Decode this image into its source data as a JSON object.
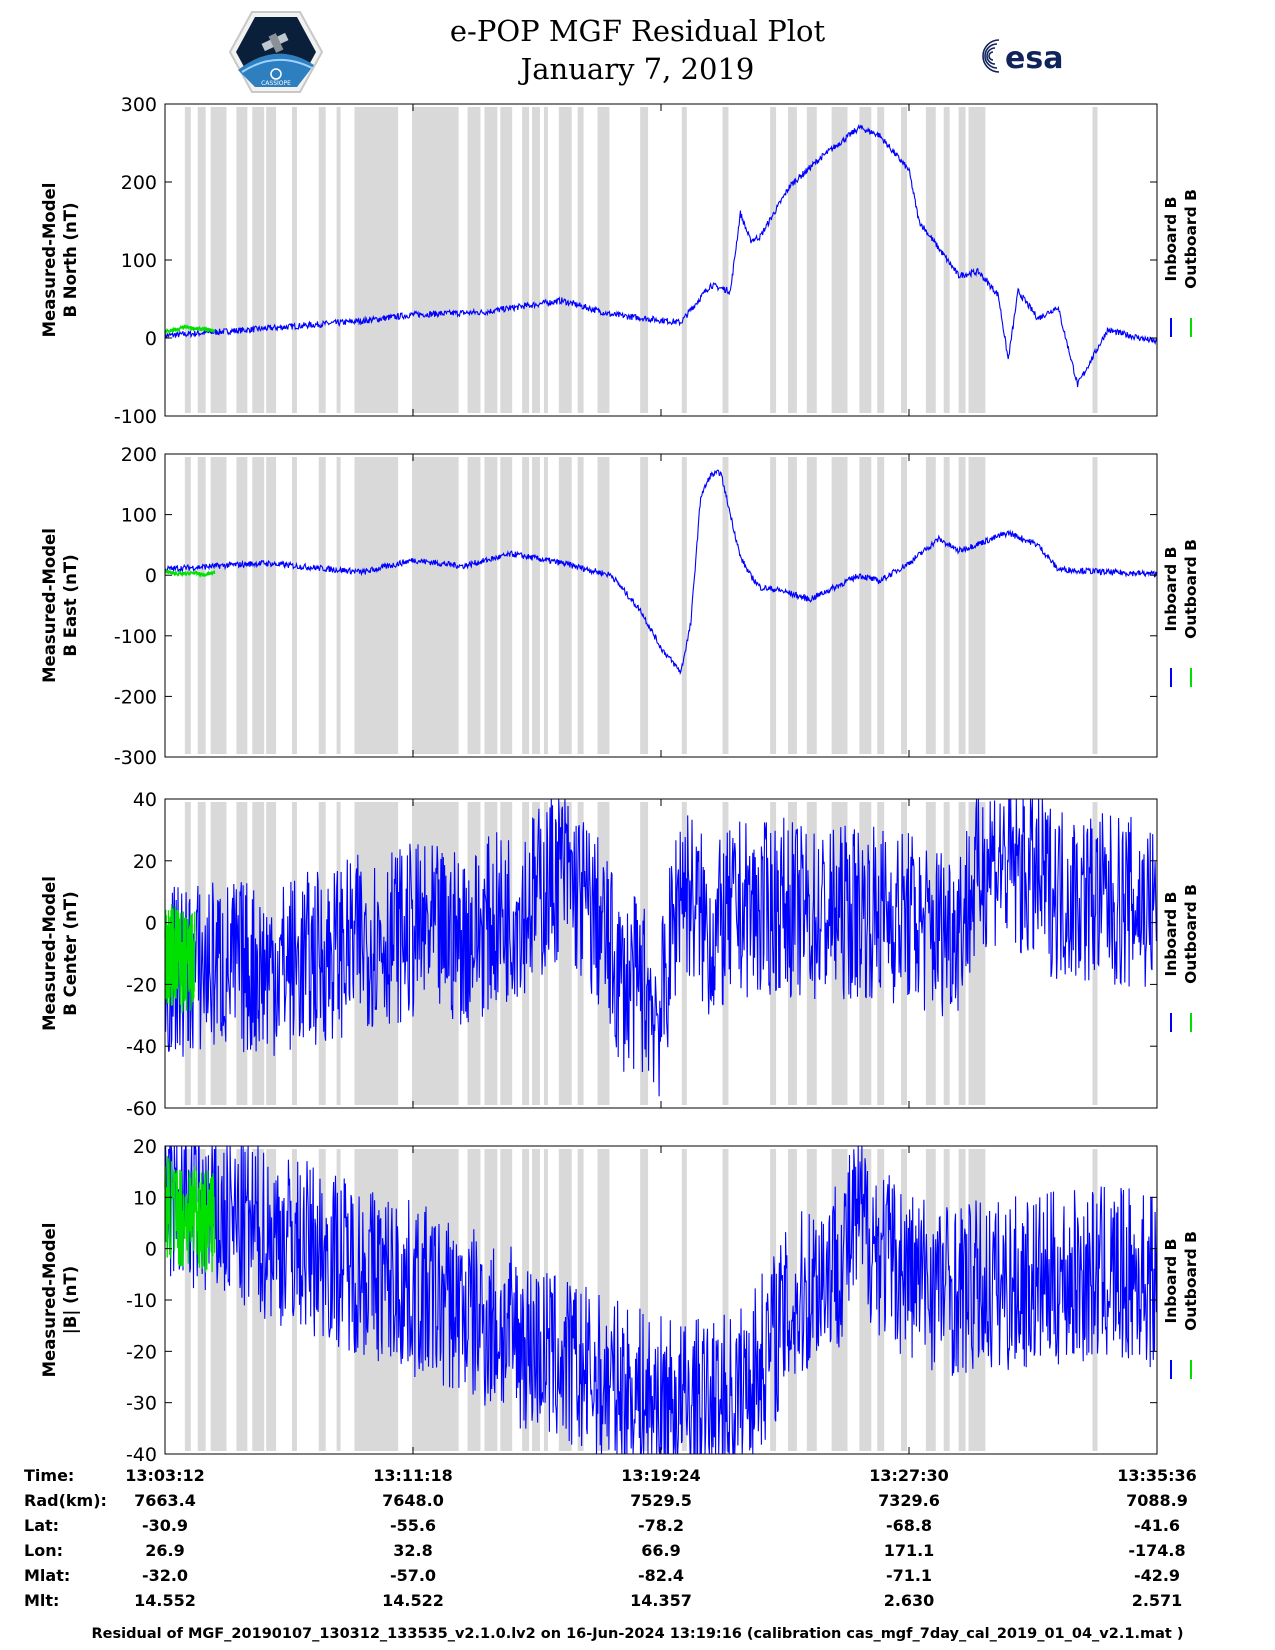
{
  "header": {
    "title_line1": "e-POP MGF Residual Plot",
    "title_line2": "January 7, 2019",
    "logo_left_text": "CASSIOPE",
    "logo_right_text": "esa"
  },
  "colors": {
    "inboard": "#0000ff",
    "outboard": "#00e000",
    "gap_shading": "#d9d9d9"
  },
  "chart_data": [
    {
      "type": "line",
      "ylabel": [
        "Measured-Model",
        "B North (nT)"
      ],
      "ylim": [
        -100,
        300
      ],
      "yticks": [
        300,
        200,
        100,
        0,
        -100
      ],
      "legend": [
        "Inboard B",
        "Outboard B"
      ],
      "series": [
        {
          "name": "Inboard B",
          "x_min": [
            0,
            10,
            20,
            25,
            32,
            40,
            45,
            52,
            55,
            57,
            58,
            59,
            60,
            63,
            66,
            70,
            72,
            75,
            76,
            78,
            80,
            82,
            84,
            85,
            86,
            88,
            90,
            92,
            95,
            100
          ],
          "y": [
            3,
            12,
            22,
            30,
            33,
            48,
            30,
            20,
            68,
            60,
            160,
            125,
            130,
            195,
            230,
            270,
            260,
            215,
            150,
            115,
            80,
            85,
            55,
            -28,
            60,
            25,
            40,
            -60,
            10,
            -5
          ]
        },
        {
          "name": "Outboard B",
          "x_min": [
            0,
            1,
            2,
            3,
            4,
            5
          ],
          "y": [
            8,
            10,
            14,
            12,
            11,
            9
          ]
        }
      ]
    },
    {
      "type": "line",
      "ylabel": [
        "Measured-Model",
        "B East (nT)"
      ],
      "ylim": [
        -300,
        200
      ],
      "yticks": [
        200,
        100,
        0,
        -100,
        -200,
        -300
      ],
      "legend": [
        "Inboard B",
        "Outboard B"
      ],
      "series": [
        {
          "name": "Inboard B",
          "x_min": [
            0,
            10,
            20,
            25,
            30,
            35,
            40,
            45,
            48,
            50,
            52,
            53,
            54,
            55,
            56,
            58,
            59,
            60,
            62,
            65,
            70,
            72,
            75,
            78,
            80,
            85,
            88,
            90,
            95,
            100
          ],
          "y": [
            10,
            20,
            5,
            25,
            15,
            35,
            20,
            0,
            -60,
            -120,
            -160,
            -80,
            130,
            165,
            170,
            30,
            0,
            -20,
            -25,
            -40,
            0,
            -10,
            20,
            60,
            40,
            70,
            50,
            10,
            5,
            2
          ]
        },
        {
          "name": "Outboard B",
          "x_min": [
            0,
            1,
            2,
            3,
            4,
            5
          ],
          "y": [
            6,
            3,
            2,
            4,
            0,
            5
          ]
        }
      ]
    },
    {
      "type": "line",
      "ylabel": [
        "Measured-Model",
        "B Center (nT)"
      ],
      "ylim": [
        -60,
        40
      ],
      "yticks": [
        40,
        20,
        0,
        -20,
        -40,
        -60
      ],
      "legend": [
        "Inboard B",
        "Outboard B"
      ],
      "series": [
        {
          "name": "Inboard B",
          "x_min": [
            0,
            5,
            10,
            15,
            20,
            25,
            30,
            35,
            38,
            40,
            44,
            46,
            48,
            50,
            52,
            55,
            58,
            60,
            62,
            65,
            70,
            75,
            77,
            80,
            83,
            87,
            90,
            95,
            100
          ],
          "y": [
            -17,
            -14,
            -15,
            -12,
            -6,
            -3,
            -5,
            3,
            10,
            18,
            -2,
            -20,
            -20,
            -30,
            15,
            -5,
            5,
            3,
            6,
            2,
            4,
            2,
            -3,
            0,
            22,
            15,
            10,
            7,
            5
          ]
        },
        {
          "name": "Outboard B",
          "x_min": [
            0,
            1,
            2,
            3
          ],
          "y": [
            -12,
            -10,
            -14,
            -13
          ]
        }
      ]
    },
    {
      "type": "line",
      "ylabel": [
        "Measured-Model",
        "|B| (nT)"
      ],
      "ylim": [
        -40,
        20
      ],
      "yticks": [
        20,
        10,
        0,
        -10,
        -20,
        -30,
        -40
      ],
      "legend": [
        "Inboard B",
        "Outboard B"
      ],
      "series": [
        {
          "name": "Inboard B",
          "x_min": [
            0,
            5,
            10,
            15,
            20,
            25,
            30,
            35,
            40,
            45,
            50,
            55,
            58,
            60,
            62,
            64,
            66,
            68,
            70,
            72,
            75,
            80,
            85,
            90,
            95,
            100
          ],
          "y": [
            10,
            6,
            3,
            0,
            -4,
            -8,
            -12,
            -17,
            -22,
            -27,
            -30,
            -31,
            -28,
            -22,
            -15,
            -10,
            -5,
            -2,
            6,
            0,
            -5,
            -8,
            -7,
            -6,
            -5,
            -6
          ]
        },
        {
          "name": "Outboard B",
          "x_min": [
            0,
            1,
            2,
            3,
            4,
            5
          ],
          "y": [
            9,
            7,
            6,
            8,
            5,
            6
          ]
        }
      ]
    }
  ],
  "time_axis": {
    "row_labels": [
      "Time:",
      "Rad(km):",
      "Lat:",
      "Lon:",
      "Mlat:",
      "Mlt:"
    ],
    "ticks": [
      {
        "values": [
          "13:03:12",
          "7663.4",
          "-30.9",
          "26.9",
          "-32.0",
          "14.552"
        ]
      },
      {
        "values": [
          "13:11:18",
          "7648.0",
          "-55.6",
          "32.8",
          "-57.0",
          "14.522"
        ]
      },
      {
        "values": [
          "13:19:24",
          "7529.5",
          "-78.2",
          "66.9",
          "-82.4",
          "14.357"
        ]
      },
      {
        "values": [
          "13:27:30",
          "7329.6",
          "-68.8",
          "171.1",
          "-71.1",
          "2.630"
        ]
      },
      {
        "values": [
          "13:35:36",
          "7088.9",
          "-41.6",
          "-174.8",
          "-42.9",
          "2.571"
        ]
      }
    ]
  },
  "footer": "Residual of MGF_20190107_130312_133535_v2.1.0.lv2 on 16-Jun-2024 13:19:16 (calibration cas_mgf_7day_cal_2019_01_04_v2.1.mat )"
}
